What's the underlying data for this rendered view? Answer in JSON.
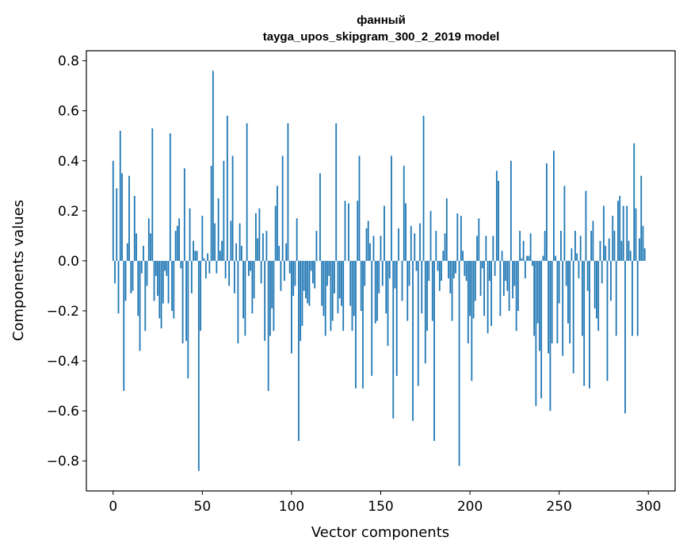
{
  "chart_data": {
    "type": "bar",
    "title": "фанный",
    "subtitle": "tayga_upos_skipgram_300_2_2019 model",
    "xlabel": "Vector components",
    "ylabel": "Components values",
    "xlim": [
      -15,
      315
    ],
    "ylim": [
      -0.92,
      0.84
    ],
    "xticks": [
      0,
      50,
      100,
      150,
      200,
      250,
      300
    ],
    "xtick_labels": [
      "0",
      "50",
      "100",
      "150",
      "200",
      "250",
      "300"
    ],
    "yticks": [
      -0.8,
      -0.6,
      -0.4,
      -0.2,
      0.0,
      0.2,
      0.4,
      0.6,
      0.8
    ],
    "ytick_labels": [
      "−0.8",
      "−0.6",
      "−0.4",
      "−0.2",
      "0.0",
      "0.2",
      "0.4",
      "0.6",
      "0.8"
    ],
    "bar_color": "#1f77b4",
    "grid": false,
    "values": [
      0.4,
      -0.09,
      0.29,
      -0.21,
      0.52,
      0.35,
      -0.52,
      -0.16,
      0.07,
      0.34,
      -0.13,
      -0.12,
      0.26,
      0.11,
      -0.22,
      -0.36,
      -0.05,
      0.06,
      -0.28,
      -0.1,
      0.17,
      0.11,
      0.53,
      -0.16,
      -0.06,
      -0.14,
      -0.23,
      -0.27,
      -0.17,
      -0.04,
      -0.06,
      -0.17,
      0.51,
      -0.2,
      -0.23,
      0.12,
      0.14,
      0.17,
      -0.03,
      -0.33,
      0.37,
      -0.32,
      -0.47,
      0.21,
      -0.13,
      0.08,
      0.04,
      0.04,
      -0.84,
      -0.28,
      0.18,
      0.01,
      -0.07,
      0.03,
      -0.05,
      0.38,
      0.76,
      0.15,
      -0.05,
      0.25,
      0.04,
      0.08,
      0.4,
      -0.07,
      0.58,
      -0.1,
      0.16,
      0.42,
      -0.13,
      0.07,
      -0.33,
      0.15,
      0.06,
      -0.23,
      -0.3,
      0.55,
      -0.06,
      -0.04,
      -0.21,
      -0.15,
      0.19,
      0.09,
      0.21,
      -0.09,
      0.11,
      -0.32,
      0.12,
      -0.52,
      -0.3,
      -0.19,
      -0.28,
      0.22,
      0.3,
      0.06,
      -0.12,
      0.42,
      -0.08,
      0.07,
      0.55,
      -0.05,
      -0.37,
      -0.14,
      -0.1,
      0.17,
      -0.72,
      -0.32,
      -0.26,
      -0.12,
      -0.15,
      -0.17,
      -0.18,
      -0.04,
      -0.09,
      -0.11,
      0.12,
      0.0,
      0.35,
      -0.18,
      -0.22,
      -0.3,
      -0.1,
      -0.06,
      -0.28,
      -0.24,
      -0.13,
      0.55,
      -0.21,
      -0.15,
      -0.18,
      -0.28,
      0.24,
      0.0,
      0.23,
      -0.18,
      -0.28,
      -0.22,
      -0.51,
      0.24,
      0.42,
      -0.2,
      -0.51,
      -0.1,
      0.13,
      0.16,
      0.07,
      -0.46,
      0.1,
      -0.25,
      -0.24,
      -0.13,
      0.1,
      -0.1,
      0.22,
      -0.21,
      -0.34,
      -0.07,
      0.42,
      -0.63,
      -0.11,
      -0.46,
      0.13,
      0.0,
      -0.16,
      0.38,
      0.23,
      -0.24,
      -0.1,
      0.14,
      -0.64,
      0.11,
      -0.04,
      -0.5,
      0.15,
      -0.21,
      0.58,
      -0.41,
      -0.28,
      -0.08,
      0.2,
      -0.24,
      -0.72,
      0.12,
      -0.04,
      -0.12,
      -0.08,
      0.04,
      0.11,
      0.25,
      -0.07,
      -0.13,
      -0.24,
      -0.07,
      -0.05,
      0.19,
      -0.82,
      0.18,
      0.04,
      -0.06,
      -0.08,
      -0.33,
      -0.22,
      -0.48,
      -0.23,
      -0.16,
      0.1,
      0.17,
      -0.14,
      -0.03,
      -0.22,
      0.1,
      -0.29,
      -0.08,
      -0.26,
      0.1,
      -0.06,
      0.36,
      0.32,
      -0.22,
      0.04,
      -0.14,
      -0.08,
      -0.12,
      -0.2,
      0.4,
      -0.15,
      -0.1,
      -0.28,
      -0.2,
      0.12,
      0.01,
      0.08,
      -0.07,
      0.02,
      0.02,
      0.11,
      -0.02,
      -0.3,
      -0.58,
      -0.25,
      -0.36,
      -0.55,
      0.02,
      0.12,
      0.39,
      -0.37,
      -0.6,
      -0.33,
      0.44,
      0.02,
      -0.33,
      -0.17,
      0.12,
      -0.38,
      0.3,
      -0.1,
      -0.25,
      -0.33,
      0.05,
      -0.45,
      0.12,
      0.03,
      -0.07,
      0.1,
      -0.3,
      -0.5,
      0.28,
      -0.12,
      -0.51,
      0.12,
      0.16,
      -0.19,
      -0.23,
      -0.28,
      0.08,
      -0.09,
      0.22,
      0.06,
      -0.48,
      0.09,
      -0.16,
      0.18,
      0.12,
      -0.3,
      0.24,
      0.26,
      0.08,
      0.22,
      -0.61,
      0.22,
      0.08,
      0.04,
      -0.3,
      0.47,
      0.21,
      -0.3,
      0.09,
      0.34,
      0.14,
      0.05
    ]
  }
}
